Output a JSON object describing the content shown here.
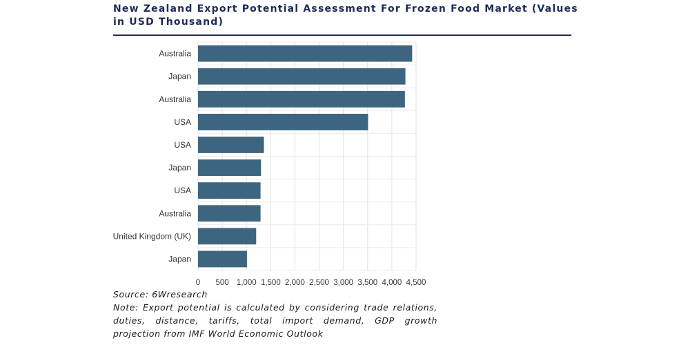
{
  "chart_data": {
    "type": "bar",
    "orientation": "horizontal",
    "title": "New Zealand Export Potential Assessment For Frozen Food Market (Values in USD Thousand)",
    "categories": [
      "Australia",
      "Japan",
      "Australia",
      "USA",
      "USA",
      "Japan",
      "USA",
      "Australia",
      "United Kingdom (UK)",
      "Japan"
    ],
    "values": [
      4420,
      4280,
      4270,
      3510,
      1360,
      1300,
      1290,
      1290,
      1200,
      1010
    ],
    "xlim": [
      0,
      4500
    ],
    "xticks": [
      "0",
      "500",
      "1,000",
      "1,500",
      "2,000",
      "2,500",
      "3,000",
      "3,500",
      "4,000",
      "4,500"
    ],
    "grid": true,
    "bar_color": "#3d6580"
  },
  "source": "Source: 6Wresearch",
  "note": "Note: Export potential is calculated by considering trade relations, duties, distance, tariffs, total import demand, GDP growth projection from IMF World Economic Outlook"
}
